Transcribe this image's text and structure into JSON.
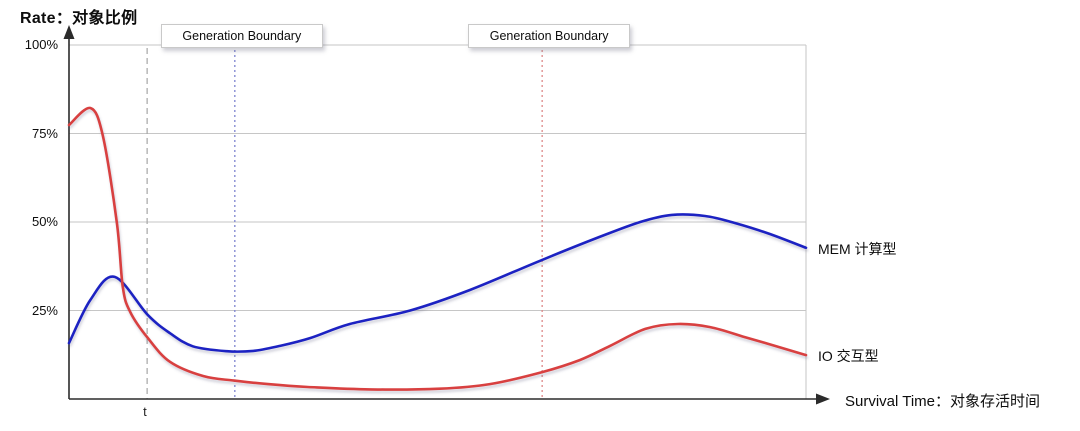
{
  "chart_data": {
    "type": "line",
    "ylabel": "Rate：对象比例",
    "xlabel": "Survival Time：对象存活时间",
    "y_ticks": [
      "100%",
      "75%",
      "50%",
      "25%"
    ],
    "y_tick_values": [
      100,
      75,
      50,
      25
    ],
    "xlim": [
      0,
      100
    ],
    "ylim": [
      0,
      100
    ],
    "grid": true,
    "legend_position": "right-of-curve-ends",
    "colors": {
      "grid": "#c6c6c6",
      "axis": "#2b2b2b",
      "background": "#ffffff"
    },
    "series": [
      {
        "name": "MEM 计算型",
        "color": "#1c24c2",
        "points": [
          [
            0,
            15.8
          ],
          [
            2.9,
            28
          ],
          [
            6.2,
            34.5
          ],
          [
            10.7,
            23.7
          ],
          [
            13.7,
            18.6
          ],
          [
            16.8,
            14.9
          ],
          [
            21.4,
            13.5
          ],
          [
            25,
            13.6
          ],
          [
            28.6,
            15
          ],
          [
            32.7,
            17.2
          ],
          [
            38.1,
            21.2
          ],
          [
            46.3,
            25
          ],
          [
            54.4,
            30.8
          ],
          [
            64.2,
            39.3
          ],
          [
            72,
            45.8
          ],
          [
            77.5,
            50
          ],
          [
            81.8,
            52
          ],
          [
            86.3,
            51.7
          ],
          [
            90.4,
            49.7
          ],
          [
            95.1,
            46.6
          ],
          [
            100,
            42.7
          ]
        ]
      },
      {
        "name": "IO 交互型",
        "color": "#d84040",
        "points": [
          [
            0,
            77.4
          ],
          [
            2.9,
            82.2
          ],
          [
            4.6,
            74.3
          ],
          [
            6.5,
            49.7
          ],
          [
            7.3,
            31.6
          ],
          [
            8.3,
            24.6
          ],
          [
            10.7,
            17.2
          ],
          [
            13.7,
            10.5
          ],
          [
            18.2,
            6.5
          ],
          [
            22.4,
            5.2
          ],
          [
            27,
            4.2
          ],
          [
            32.4,
            3.4
          ],
          [
            40.8,
            2.7
          ],
          [
            50.3,
            2.9
          ],
          [
            57.1,
            4.2
          ],
          [
            64.2,
            7.6
          ],
          [
            69.3,
            11
          ],
          [
            73.4,
            15
          ],
          [
            78.2,
            19.8
          ],
          [
            82.6,
            21.2
          ],
          [
            87,
            20.3
          ],
          [
            91.7,
            17.5
          ],
          [
            95.8,
            15
          ],
          [
            100,
            12.4
          ]
        ]
      }
    ],
    "boundaries": [
      {
        "label": "Generation Boundary",
        "x": 22.5,
        "color": "#7d84cf",
        "style": "dotted"
      },
      {
        "label": "Generation Boundary",
        "x": 64.2,
        "color": "#dd8888",
        "style": "dotted"
      }
    ],
    "t_marker": {
      "label": "t",
      "x": 10.6,
      "color": "#a6a6a6",
      "style": "dashed"
    }
  }
}
